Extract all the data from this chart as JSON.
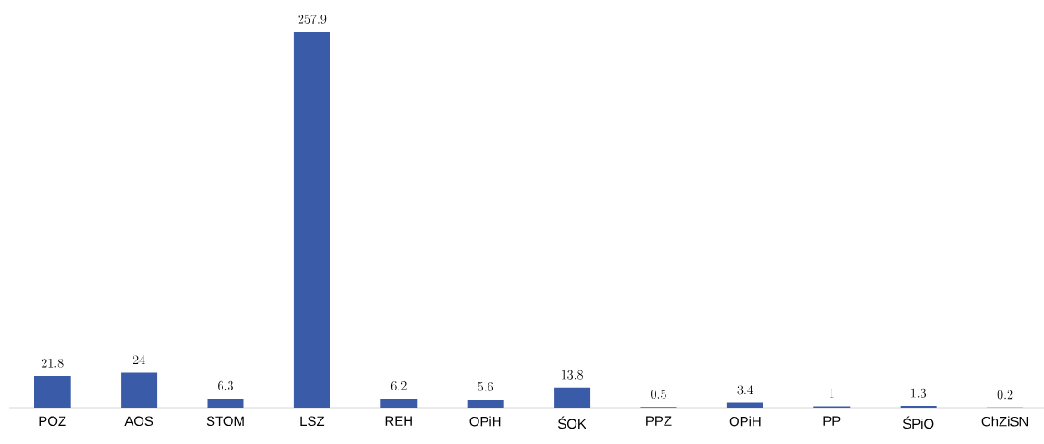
{
  "chart_data": {
    "type": "bar",
    "categories": [
      "POZ",
      "AOS",
      "STOM",
      "LSZ",
      "REH",
      "OPiH",
      "ŚOK",
      "PPZ",
      "OPiH",
      "PP",
      "ŚPiO",
      "ChZiSN"
    ],
    "values": [
      21.8,
      24,
      6.3,
      257.9,
      6.2,
      5.6,
      13.8,
      0.5,
      3.4,
      1,
      1.3,
      0.2
    ],
    "color": "#3a5ca8",
    "data_labels": true
  }
}
